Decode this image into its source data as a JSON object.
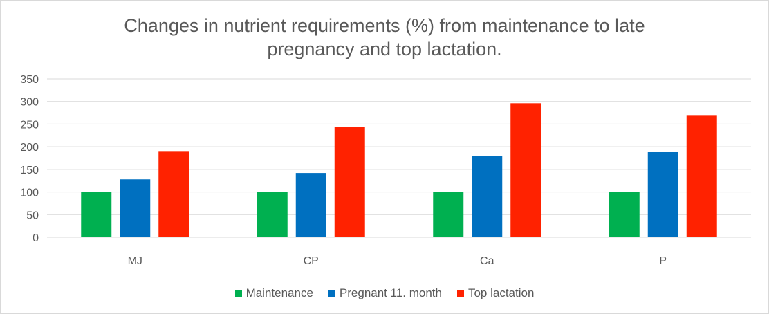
{
  "chart_data": {
    "type": "bar",
    "title_lines": [
      "Changes in nutrient requirements (%) from maintenance to late",
      "pregnancy and top lactation."
    ],
    "categories": [
      "MJ",
      "CP",
      "Ca",
      "P"
    ],
    "series": [
      {
        "name": "Maintenance",
        "color": "#00b050",
        "values": [
          100,
          100,
          100,
          100
        ]
      },
      {
        "name": "Pregnant 11. month",
        "color": "#0070c0",
        "values": [
          128,
          142,
          179,
          188
        ]
      },
      {
        "name": "Top lactation",
        "color": "#ff2200",
        "values": [
          189,
          243,
          296,
          270
        ]
      }
    ],
    "ylim": [
      0,
      350
    ],
    "yticks": [
      0,
      50,
      100,
      150,
      200,
      250,
      300,
      350
    ],
    "grid": true,
    "legend_position": "bottom"
  }
}
